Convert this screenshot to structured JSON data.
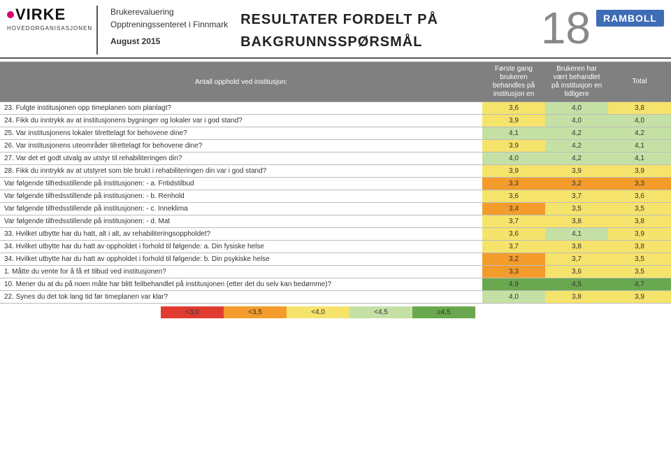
{
  "header": {
    "virke_name": "VIRKE",
    "virke_sub": "HOVEDORGANISASJONEN",
    "meta_line1": "Brukerevaluering",
    "meta_line2": "Opptreningssenteret i Finnmark",
    "meta_line3": "August 2015",
    "title_line1": "RESULTATER FORDELT PÅ",
    "title_line2": "BAKGRUNNSSPØRSMÅL",
    "page_number": "18",
    "ramboll": "RAMBOLL"
  },
  "table": {
    "header_question": "Antall opphold ved institusjon:",
    "col1": "Første gang brukeren behandles på institusjon en",
    "col2": "Brukeren har vært behandlet på institusjon en tidligere",
    "col3": "Total"
  },
  "colors": {
    "red": "#e03c31",
    "orange": "#f39c2c",
    "yellow": "#f6e36b",
    "lightgreen": "#c5e0a5",
    "green": "#6aa84f"
  },
  "thresholds": [
    3.0,
    3.5,
    4.0,
    4.5
  ],
  "rows": [
    {
      "q": "23. Fulgte institusjonen opp timeplanen som planlagt?",
      "v": [
        3.6,
        4.0,
        3.8
      ]
    },
    {
      "q": "24. Fikk du inntrykk av at institusjonens bygninger og lokaler var i god stand?",
      "v": [
        3.9,
        4.0,
        4.0
      ]
    },
    {
      "q": "25. Var institusjonens lokaler tilrettelagt for behovene dine?",
      "v": [
        4.1,
        4.2,
        4.2
      ]
    },
    {
      "q": "26. Var institusjonens uteområder tilrettelagt for behovene dine?",
      "v": [
        3.9,
        4.2,
        4.1
      ]
    },
    {
      "q": "27. Var det et godt utvalg av utstyr til rehabiliteringen din?",
      "v": [
        4.0,
        4.2,
        4.1
      ]
    },
    {
      "q": "28. Fikk du inntrykk av at utstyret som ble brukt i rehabiliteringen din var i god stand?",
      "v": [
        3.9,
        3.9,
        3.9
      ]
    },
    {
      "q": "Var følgende tilfredsstillende på institusjonen: - a. Fritidstilbud",
      "v": [
        3.3,
        3.2,
        3.3
      ]
    },
    {
      "q": "Var følgende tilfredsstillende på institusjonen: - b. Renhold",
      "v": [
        3.6,
        3.7,
        3.6
      ]
    },
    {
      "q": "Var følgende tilfredsstillende på institusjonen: - c. Inneklima",
      "v": [
        3.4,
        3.5,
        3.5
      ]
    },
    {
      "q": "Var følgende tilfredsstillende på institusjonen: - d. Mat",
      "v": [
        3.7,
        3.8,
        3.8
      ]
    },
    {
      "q": "33. Hvilket utbytte har du hatt, alt i alt, av rehabiliteringsoppholdet?",
      "v": [
        3.6,
        4.1,
        3.9
      ]
    },
    {
      "q": "34. Hvilket utbytte har du hatt av oppholdet i forhold til følgende: a. Din fysiske helse",
      "v": [
        3.7,
        3.8,
        3.8
      ]
    },
    {
      "q": "34. Hvilket utbytte har du hatt av oppholdet i forhold til følgende: b. Din psykiske helse",
      "v": [
        3.2,
        3.7,
        3.5
      ]
    },
    {
      "q": "1. Måtte du vente for å få et tilbud ved institusjonen?",
      "v": [
        3.3,
        3.6,
        3.5
      ]
    },
    {
      "q": "10. Mener du at du på noen måte har blitt feilbehandlet på institusjonen (etter det du selv kan bedømme)?",
      "v": [
        4.9,
        4.5,
        4.7
      ]
    },
    {
      "q": "22. Synes du det tok lang tid før timeplanen var klar?",
      "v": [
        4.0,
        3.8,
        3.9
      ]
    }
  ],
  "legend": [
    "<3,0",
    "<3,5",
    "<4,0",
    "<4,5",
    "≥4,5"
  ]
}
